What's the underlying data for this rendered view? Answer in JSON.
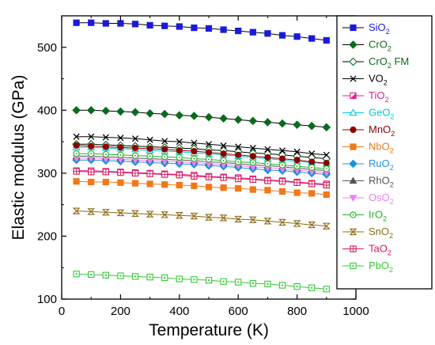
{
  "chart_data": {
    "type": "line",
    "xlabel": "Temperature (K)",
    "ylabel": "Elastic modulus (GPa)",
    "xlim": [
      0,
      1000
    ],
    "ylim": [
      100,
      550
    ],
    "xticks": [
      0,
      200,
      400,
      600,
      800,
      1000
    ],
    "yticks": [
      100,
      200,
      300,
      400,
      500
    ],
    "grid": false,
    "legend_position": "right",
    "x": [
      50,
      100,
      150,
      200,
      250,
      300,
      350,
      400,
      450,
      500,
      550,
      600,
      650,
      700,
      750,
      800,
      850,
      900
    ],
    "series": [
      {
        "name": "SiO",
        "subscript": "2",
        "suffix": "",
        "color": "#1a1adb",
        "line_color": "#000000",
        "marker": "square-filled",
        "values": [
          539,
          539,
          538,
          538,
          537,
          535,
          534,
          533,
          531,
          530,
          528,
          526,
          524,
          522,
          519,
          517,
          514,
          511
        ]
      },
      {
        "name": "CrO",
        "subscript": "2",
        "suffix": "",
        "color": "#0b6a1d",
        "line_color": "#000000",
        "marker": "diamond-filled",
        "values": [
          400,
          400,
          399,
          398,
          397,
          395,
          394,
          392,
          391,
          389,
          387,
          385,
          383,
          381,
          379,
          377,
          375,
          373
        ]
      },
      {
        "name": "CrO",
        "subscript": "2",
        "suffix": " FM",
        "color": "#0b6a1d",
        "line_color": "#000000",
        "marker": "diamond-open",
        "values": [
          346,
          346,
          345,
          344,
          343,
          342,
          341,
          340,
          339,
          337,
          336,
          334,
          332,
          331,
          329,
          327,
          325,
          323
        ]
      },
      {
        "name": "VO",
        "subscript": "2",
        "suffix": "",
        "color": "#000000",
        "line_color": "#000000",
        "marker": "x",
        "values": [
          358,
          358,
          357,
          356,
          355,
          353,
          351,
          350,
          348,
          346,
          344,
          342,
          340,
          338,
          336,
          334,
          331,
          329
        ]
      },
      {
        "name": "TiO",
        "subscript": "2",
        "suffix": "",
        "color": "#e0208a",
        "line_color": "#e0208a",
        "marker": "square-half",
        "values": [
          304,
          304,
          303,
          302,
          301,
          300,
          299,
          298,
          297,
          295,
          294,
          293,
          291,
          289,
          288,
          286,
          284,
          283
        ]
      },
      {
        "name": "GeO",
        "subscript": "2",
        "suffix": "",
        "color": "#00c8d8",
        "line_color": "#00c8d8",
        "marker": "triangle-up-open",
        "values": [
          341,
          341,
          340,
          339,
          338,
          336,
          335,
          334,
          332,
          331,
          329,
          327,
          325,
          323,
          321,
          319,
          317,
          315
        ]
      },
      {
        "name": "MnO",
        "subscript": "2",
        "suffix": "",
        "color": "#8b0000",
        "line_color": "#8b0000",
        "marker": "circle-filled",
        "values": [
          344,
          343,
          342,
          341,
          340,
          339,
          338,
          336,
          335,
          333,
          331,
          329,
          327,
          325,
          323,
          321,
          318,
          316
        ]
      },
      {
        "name": "NbO",
        "subscript": "2",
        "suffix": "",
        "color": "#f07818",
        "line_color": "#f07818",
        "marker": "square-filled",
        "values": [
          287,
          286,
          286,
          285,
          284,
          283,
          282,
          281,
          280,
          278,
          277,
          276,
          274,
          273,
          271,
          269,
          268,
          266
        ]
      },
      {
        "name": "RuO",
        "subscript": "2",
        "suffix": "",
        "color": "#1e90e0",
        "line_color": "#1e90e0",
        "marker": "diamond-filled",
        "values": [
          321,
          321,
          320,
          319,
          318,
          317,
          316,
          315,
          314,
          312,
          311,
          309,
          307,
          305,
          304,
          302,
          300,
          298
        ]
      },
      {
        "name": "RhO",
        "subscript": "2",
        "suffix": "",
        "color": "#555555",
        "line_color": "#555555",
        "marker": "triangle-up-filled",
        "values": [
          327,
          327,
          326,
          325,
          324,
          323,
          322,
          321,
          320,
          318,
          317,
          315,
          313,
          312,
          310,
          308,
          306,
          304
        ]
      },
      {
        "name": "OsO",
        "subscript": "2",
        "suffix": "",
        "color": "#ee82ee",
        "line_color": "#ee82ee",
        "marker": "triangle-down-filled",
        "values": [
          324,
          324,
          323,
          322,
          321,
          320,
          319,
          318,
          317,
          315,
          314,
          312,
          310,
          309,
          307,
          305,
          303,
          301
        ]
      },
      {
        "name": "IrO",
        "subscript": "2",
        "suffix": "",
        "color": "#22b022",
        "line_color": "#22b022",
        "marker": "circle-dot",
        "values": [
          331,
          331,
          330,
          329,
          328,
          327,
          326,
          325,
          323,
          322,
          320,
          318,
          317,
          315,
          313,
          311,
          309,
          307
        ]
      },
      {
        "name": "SnO",
        "subscript": "2",
        "suffix": "",
        "color": "#8b6914",
        "line_color": "#8b6914",
        "marker": "hourglass",
        "values": [
          240,
          239,
          238,
          237,
          236,
          235,
          234,
          233,
          232,
          230,
          229,
          227,
          226,
          224,
          222,
          220,
          218,
          216
        ]
      },
      {
        "name": "TaO",
        "subscript": "2",
        "suffix": "",
        "color": "#d81a5a",
        "line_color": "#d81a5a",
        "marker": "square-hash",
        "values": [
          303,
          302,
          302,
          301,
          300,
          299,
          298,
          297,
          295,
          294,
          293,
          291,
          290,
          288,
          287,
          285,
          283,
          281
        ]
      },
      {
        "name": "PbO",
        "subscript": "2",
        "suffix": "",
        "color": "#33cc33",
        "line_color": "#33cc33",
        "marker": "square-dot",
        "values": [
          140,
          139,
          138,
          137,
          136,
          135,
          134,
          132,
          131,
          130,
          128,
          127,
          125,
          124,
          122,
          120,
          118,
          116
        ]
      }
    ]
  }
}
